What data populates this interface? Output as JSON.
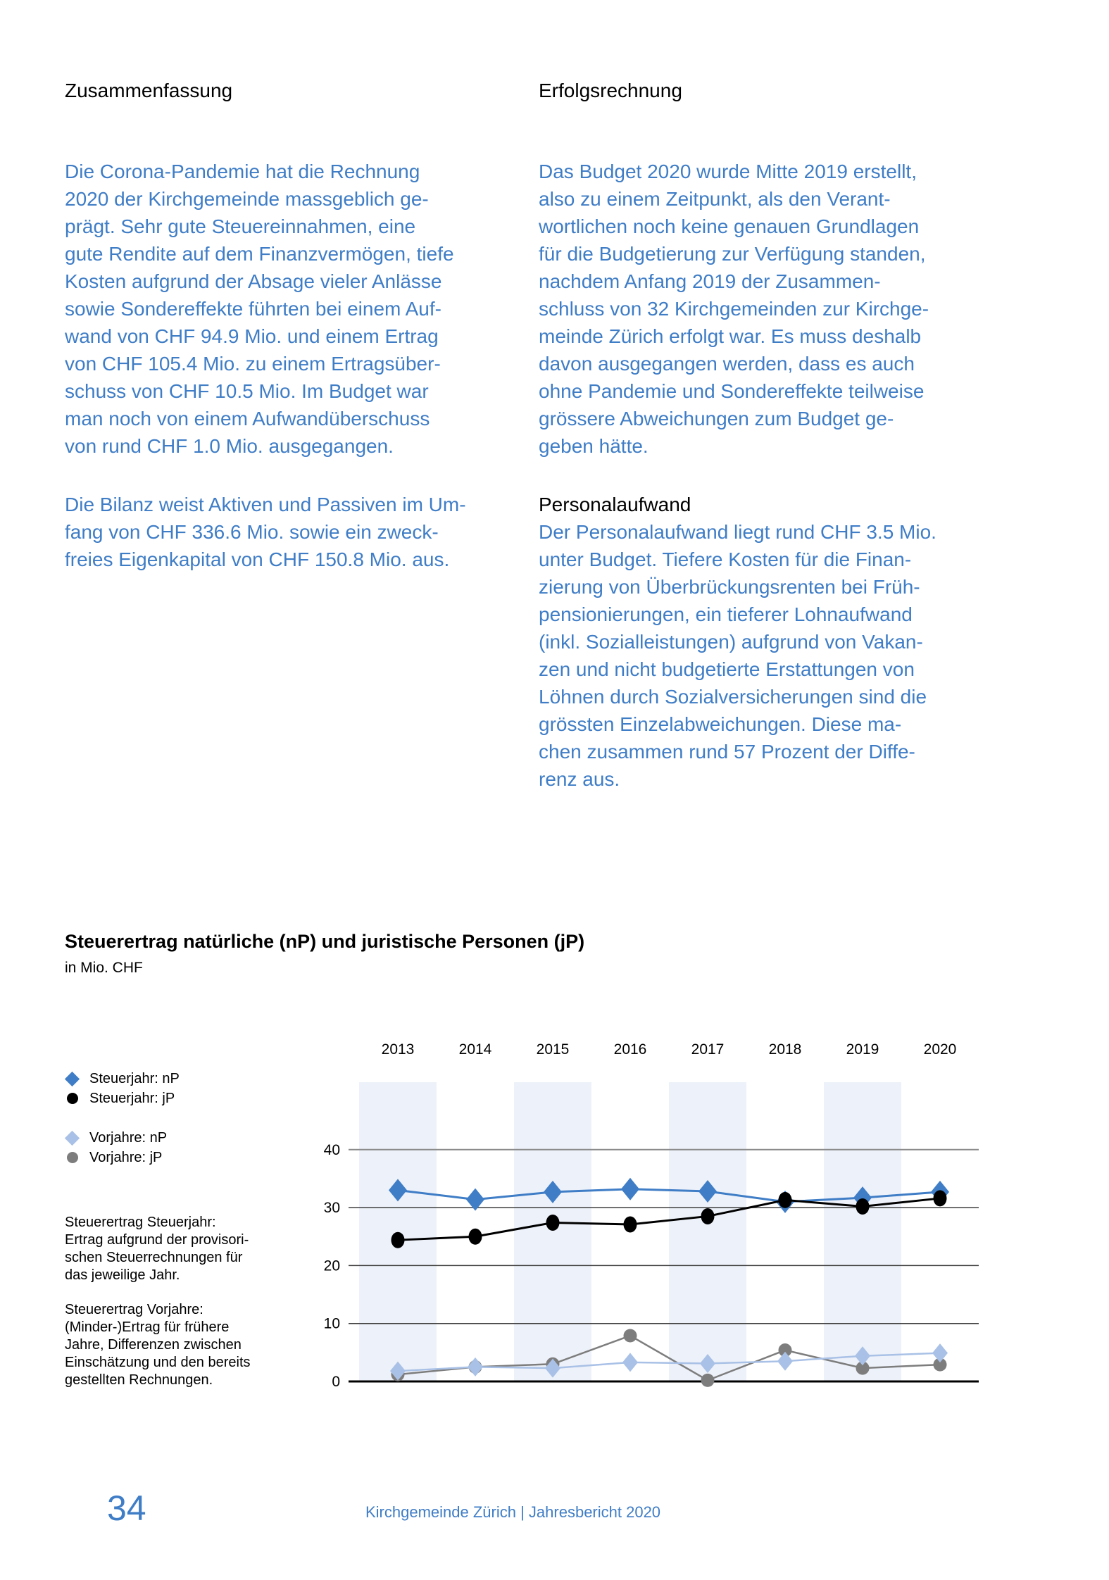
{
  "page": {
    "left": {
      "heading": "Zusammenfassung",
      "para1": [
        "Die Corona-Pandemie hat die Rechnung",
        "2020 der Kirchgemeinde massgeblich ge-",
        "prägt. Sehr gute Steuereinnahmen, eine",
        "gute Rendite auf dem Finanzvermögen, tiefe",
        "Kosten aufgrund der Absage vieler Anlässe",
        "sowie Sondereffekte führten bei einem Auf-",
        "wand von CHF 94.9 Mio. und einem Ertrag",
        "von CHF 105.4 Mio. zu einem Ertragsüber-",
        "schuss von CHF 10.5 Mio. Im Budget war",
        "man noch von einem Aufwandüberschuss",
        "von rund CHF 1.0 Mio. ausgegangen."
      ],
      "para2": [
        "Die Bilanz weist Aktiven und Passiven im Um-",
        "fang von CHF 336.6 Mio. sowie ein zweck-",
        "freies Eigenkapital von CHF 150.8 Mio. aus."
      ]
    },
    "right": {
      "heading": "Erfolgsrechnung",
      "para1": [
        "Das Budget 2020 wurde Mitte 2019 erstellt,",
        "also zu einem Zeitpunkt, als den Verant-",
        "wortlichen noch keine genauen Grundlagen",
        "für die Budgetierung zur Verfügung standen,",
        "nachdem Anfang 2019 der Zusammen-",
        "schluss von 32 Kirchgemeinden zur Kirchge-",
        "meinde Zürich erfolgt war. Es muss deshalb",
        "davon ausgegangen werden, dass es auch",
        "ohne Pandemie und Sondereffekte teilweise",
        "grössere Abweichungen zum Budget ge-",
        "geben hätte."
      ],
      "subheading": "Personalaufwand",
      "para2": [
        "Der Personalaufwand liegt rund CHF 3.5 Mio.",
        "unter Budget. Tiefere Kosten für die Finan-",
        "zierung von Überbrückungsrenten bei Früh-",
        "pensionierungen, ein tieferer Lohnaufwand",
        "(inkl. Sozialleistungen) aufgrund von Vakan-",
        "zen und nicht budgetierte Erstattungen von",
        "Löhnen durch Sozialversicherungen sind die",
        "grössten Einzelabweichungen. Diese ma-",
        "chen zusammen rund 57 Prozent der Diffe-",
        "renz aus."
      ]
    },
    "footer": {
      "page_number": "34",
      "text": "Kirchgemeinde Zürich | Jahresbericht 2020"
    },
    "accent_text_color": "#3F7DC6"
  },
  "chart_data": {
    "type": "line",
    "title": "Steuerertrag natürliche (nP) und juristische Personen (jP)",
    "subtitle": "in Mio. CHF",
    "x": [
      "2013",
      "2014",
      "2015",
      "2016",
      "2017",
      "2018",
      "2019",
      "2020"
    ],
    "y_ticks": [
      0,
      10,
      20,
      30,
      40
    ],
    "ylim": [
      0,
      52
    ],
    "grid": true,
    "legend_position": "left",
    "band_years": [
      "2013",
      "2015",
      "2017",
      "2019"
    ],
    "band_color": "#EDF1F9",
    "series": [
      {
        "name": "Steuerjahr: nP",
        "marker": "diamond",
        "color": "#3F7DC6",
        "values": [
          33.0,
          31.4,
          32.7,
          33.2,
          32.8,
          31.0,
          31.7,
          32.7
        ]
      },
      {
        "name": "Steuerjahr: jP",
        "marker": "circle",
        "color": "#000000",
        "values": [
          24.4,
          25.0,
          27.4,
          27.1,
          28.5,
          31.3,
          30.2,
          31.6
        ]
      },
      {
        "name": "Vorjahre: nP",
        "marker": "diamond",
        "color": "#A9C1E6",
        "values": [
          1.8,
          2.5,
          2.3,
          3.3,
          3.1,
          3.5,
          4.4,
          4.9
        ]
      },
      {
        "name": "Vorjahre: jP",
        "marker": "circle",
        "color": "#7D7D7D",
        "values": [
          1.2,
          2.5,
          3.0,
          7.9,
          0.2,
          5.4,
          2.3,
          2.9
        ]
      }
    ],
    "notes": {
      "para1": [
        "Steuerertrag Steuerjahr:",
        "Ertrag aufgrund der provisori-",
        "schen Steuerrechnungen für",
        "das jeweilige Jahr."
      ],
      "para2": [
        "Steuerertrag Vorjahre:",
        "(Minder-)Ertrag für frühere",
        "Jahre, Differenzen zwischen",
        "Einschätzung und den bereits",
        "gestellten Rechnungen."
      ]
    }
  }
}
